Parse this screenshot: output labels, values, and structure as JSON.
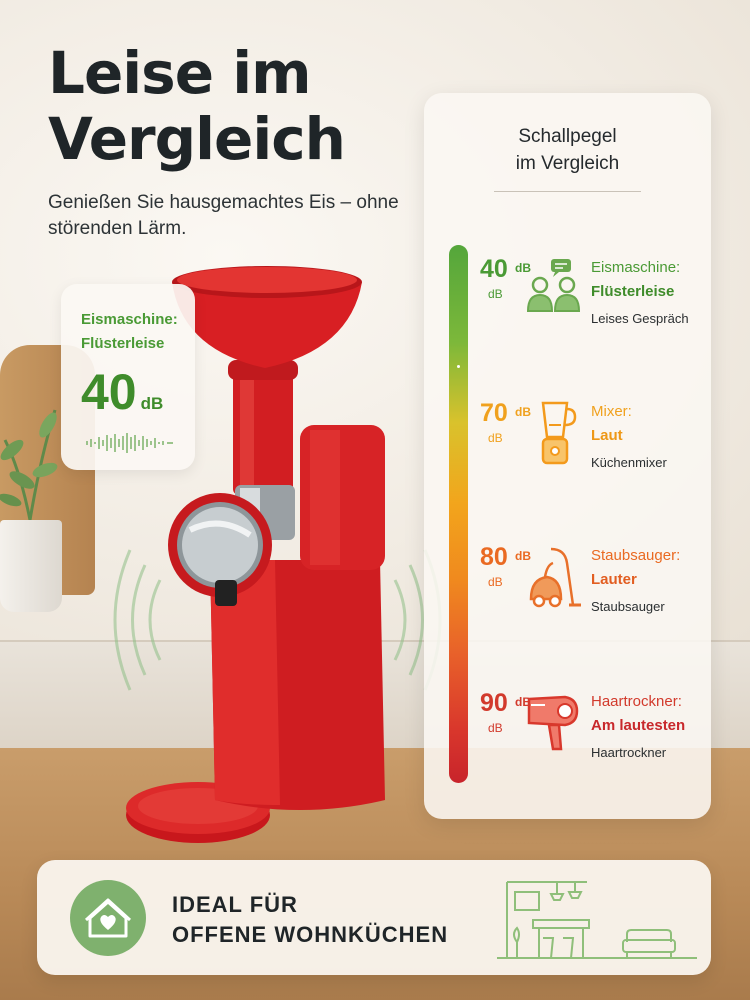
{
  "header": {
    "title": "Leise im Vergleich",
    "subtitle": "Genießen Sie hausgemachtes Eis – ohne störenden Lärm."
  },
  "badge": {
    "label_line1": "Eismaschine:",
    "label_line2": "Flüsterleise",
    "value": "40",
    "unit": "dB"
  },
  "panel": {
    "title_line1": "Schallpegel",
    "title_line2": "im Vergleich",
    "levels": [
      {
        "value": "40",
        "unit_sup": "dB",
        "unit_sub": "dB",
        "device": "Eismaschine:",
        "rating": "Flüsterleise",
        "desc": "Leises Gespräch",
        "color": "#4a9a35",
        "icon": "conversation-icon"
      },
      {
        "value": "70",
        "unit_sup": "dB",
        "unit_sub": "dB",
        "device": "Mixer:",
        "rating": "Laut",
        "desc": "Küchenmixer",
        "color": "#f0a11e",
        "icon": "blender-icon"
      },
      {
        "value": "80",
        "unit_sup": "dB",
        "unit_sub": "dB",
        "device": "Staubsauger:",
        "rating": "Lauter",
        "desc": "Staubsauger",
        "color": "#ea6a22",
        "icon": "vacuum-icon"
      },
      {
        "value": "90",
        "unit_sup": "dB",
        "unit_sub": "dB",
        "device": "Haartrockner:",
        "rating": "Am lautesten",
        "desc": "Haartrockner",
        "color": "#d23a2c",
        "icon": "hairdryer-icon"
      }
    ]
  },
  "footer": {
    "line1": "IDEAL FÜR",
    "line2": "OFFENE WOHNKÜCHEN",
    "icon": "home-heart-icon"
  }
}
